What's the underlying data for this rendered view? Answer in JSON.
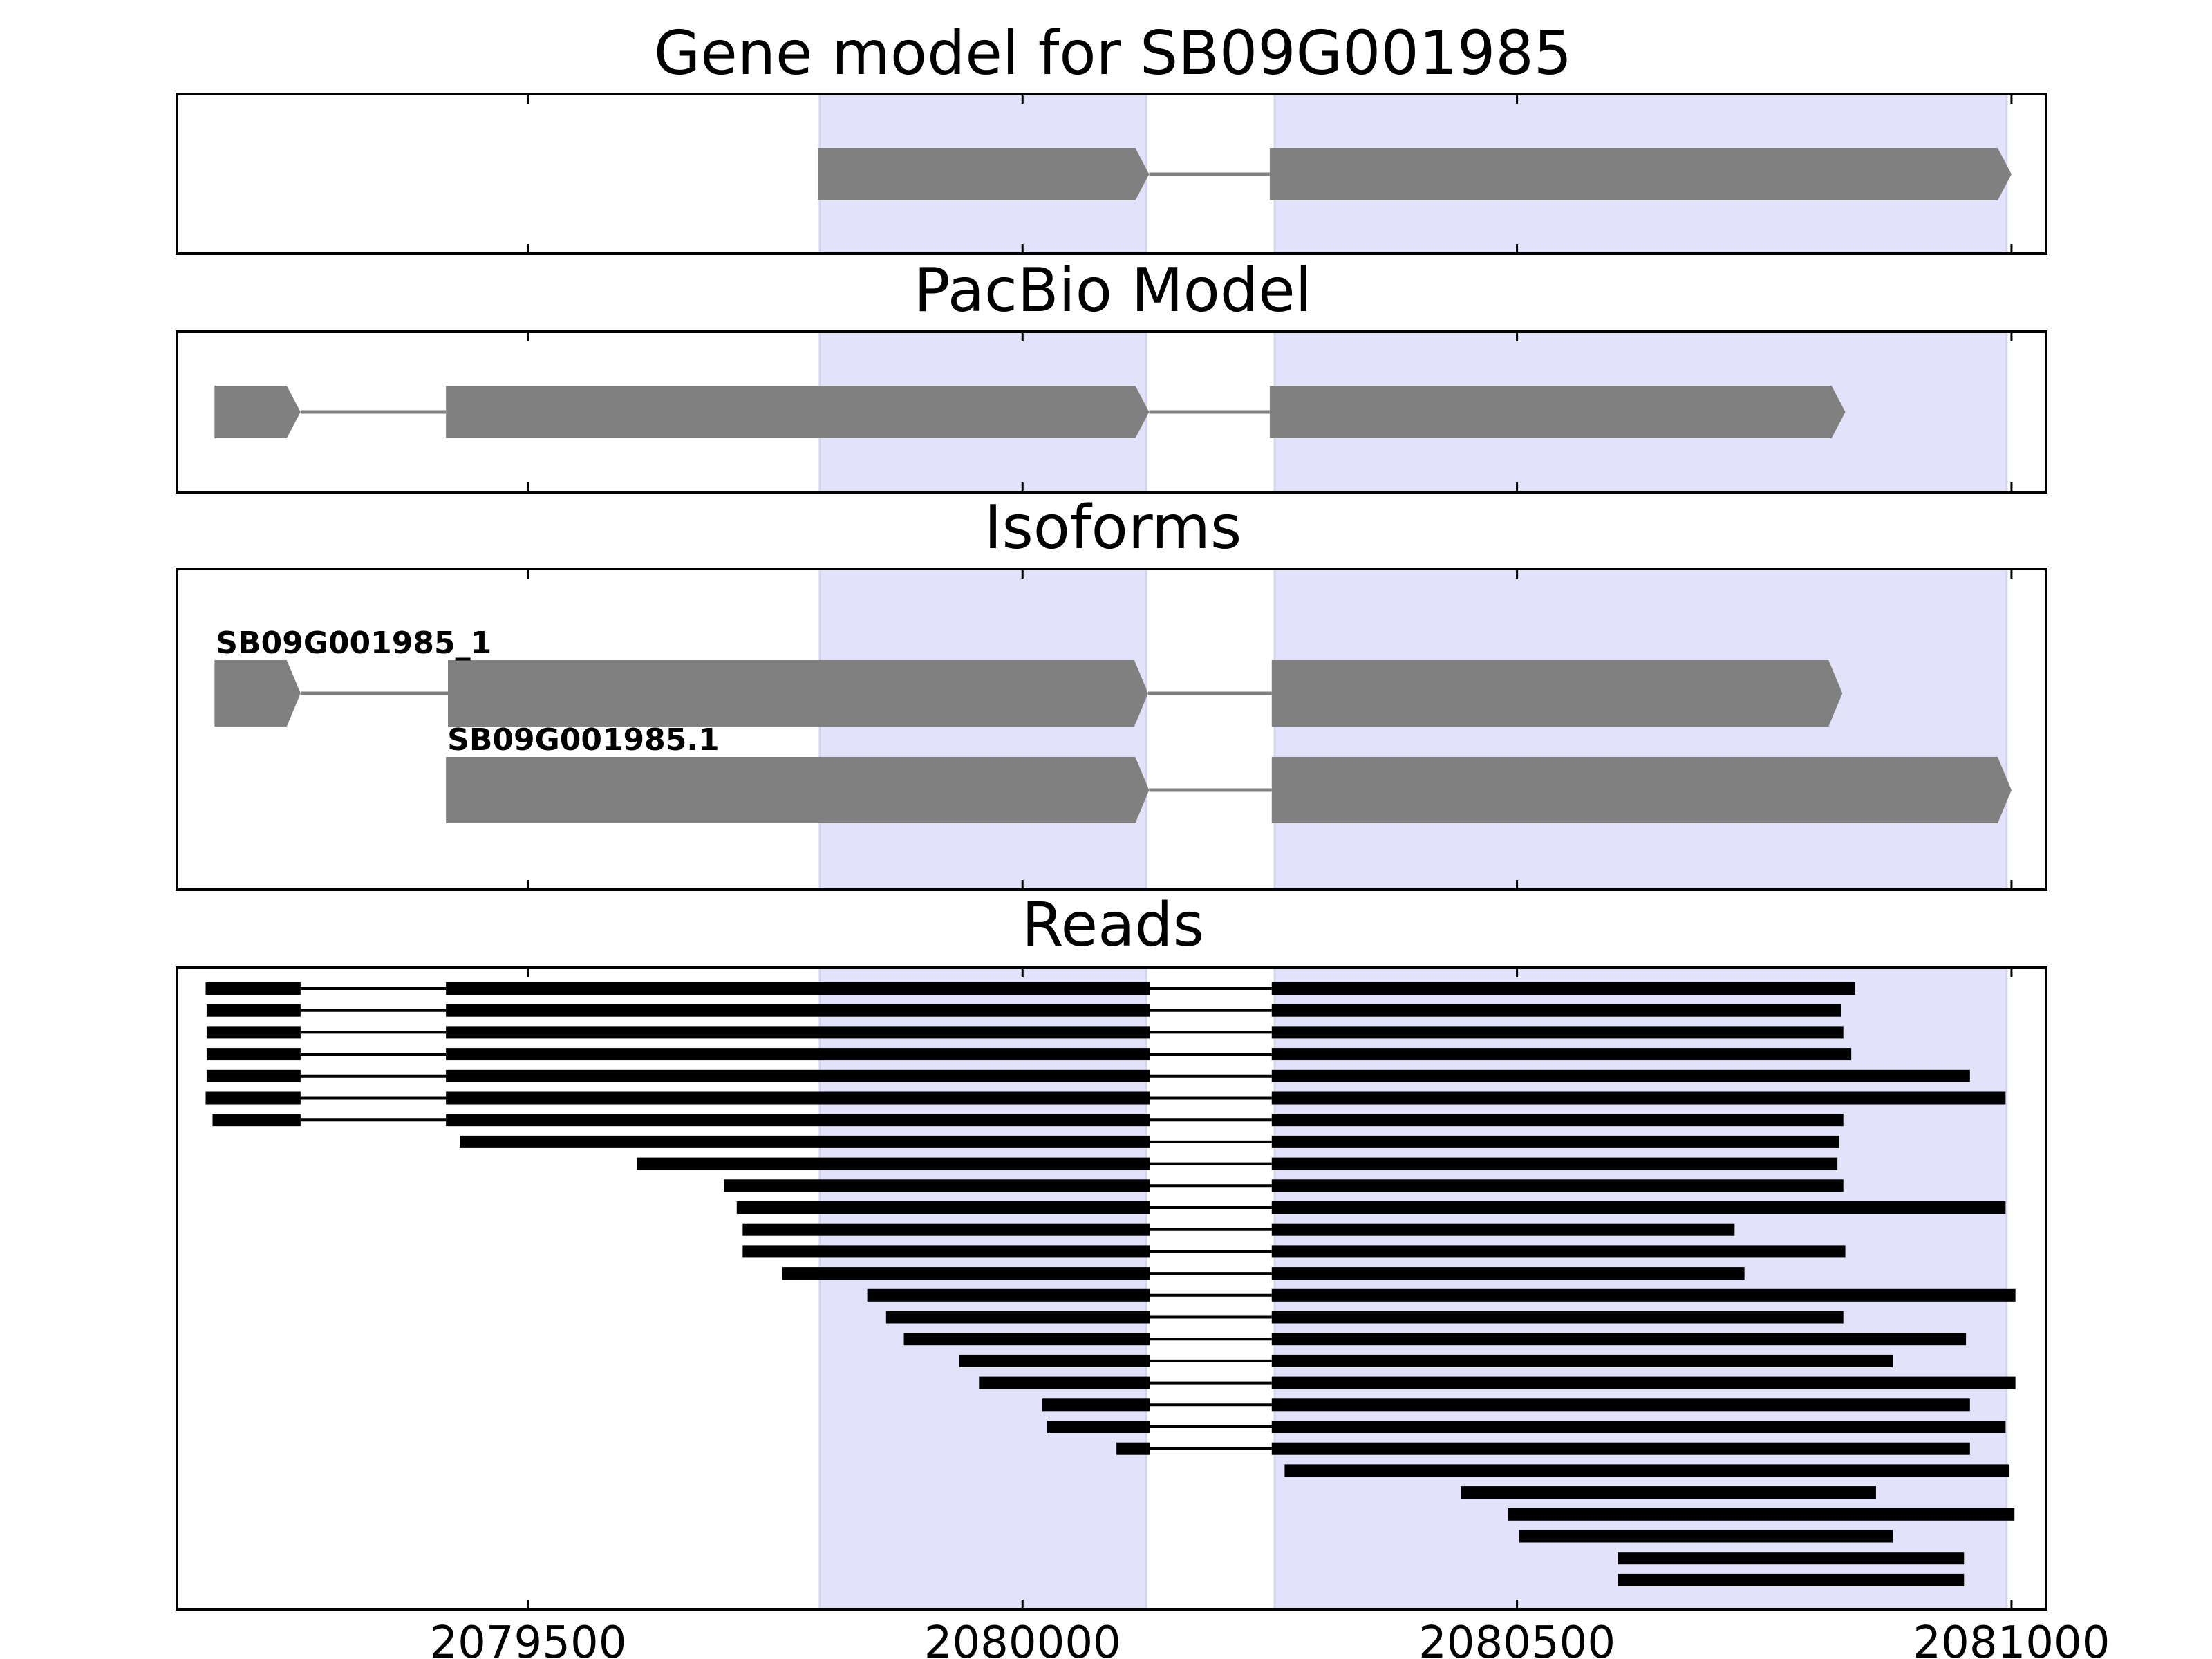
{
  "figure": {
    "xlim": [
      2079145,
      2081035
    ],
    "x_ticks": [
      2079500,
      2080000,
      2080500,
      2081000
    ],
    "x_tick_labels": [
      "2079500",
      "2080000",
      "2080500",
      "2081000"
    ],
    "highlight_regions": [
      [
        2079795,
        2080125
      ],
      [
        2080255,
        2080995
      ]
    ],
    "colors": {
      "highlight": "#e2e2fb",
      "feature": "#808080",
      "read": "#000000",
      "frame": "#000000"
    }
  },
  "panels": [
    {
      "id": "gene-model",
      "title": "Gene model for SB09G001985"
    },
    {
      "id": "pacbio-model",
      "title": "PacBio Model"
    },
    {
      "id": "isoforms",
      "title": "Isoforms"
    },
    {
      "id": "reads",
      "title": "Reads"
    }
  ],
  "gene_model": {
    "exons": [
      [
        2079793,
        2080128
      ],
      [
        2080250,
        2081000
      ]
    ]
  },
  "pacbio_model": {
    "exons": [
      [
        2079183,
        2079270
      ],
      [
        2079417,
        2080128
      ],
      [
        2080250,
        2080832
      ]
    ]
  },
  "isoforms": [
    {
      "label": "SB09G001985_1",
      "exons": [
        [
          2079183,
          2079270
        ],
        [
          2079419,
          2080127
        ],
        [
          2080252,
          2080829
        ]
      ]
    },
    {
      "label": "SB09G001985.1",
      "exons": [
        [
          2079417,
          2080128
        ],
        [
          2080252,
          2081000
        ]
      ]
    }
  ],
  "reads": [
    [
      [
        2079174,
        2079270
      ],
      [
        2079417,
        2080129
      ],
      [
        2080252,
        2080842
      ]
    ],
    [
      [
        2079175,
        2079270
      ],
      [
        2079417,
        2080129
      ],
      [
        2080252,
        2080828
      ]
    ],
    [
      [
        2079175,
        2079270
      ],
      [
        2079417,
        2080129
      ],
      [
        2080252,
        2080830
      ]
    ],
    [
      [
        2079175,
        2079270
      ],
      [
        2079417,
        2080129
      ],
      [
        2080252,
        2080838
      ]
    ],
    [
      [
        2079175,
        2079270
      ],
      [
        2079417,
        2080129
      ],
      [
        2080252,
        2080958
      ]
    ],
    [
      [
        2079174,
        2079270
      ],
      [
        2079417,
        2080129
      ],
      [
        2080252,
        2080994
      ]
    ],
    [
      [
        2079181,
        2079270
      ],
      [
        2079417,
        2080129
      ],
      [
        2080252,
        2080830
      ]
    ],
    [
      [
        2079431,
        2080129
      ],
      [
        2080252,
        2080826
      ]
    ],
    [
      [
        2079610,
        2080129
      ],
      [
        2080252,
        2080824
      ]
    ],
    [
      [
        2079698,
        2080129
      ],
      [
        2080252,
        2080830
      ]
    ],
    [
      [
        2079711,
        2080129
      ],
      [
        2080252,
        2080994
      ]
    ],
    [
      [
        2079717,
        2080129
      ],
      [
        2080252,
        2080720
      ]
    ],
    [
      [
        2079717,
        2080129
      ],
      [
        2080252,
        2080832
      ]
    ],
    [
      [
        2079757,
        2080129
      ],
      [
        2080252,
        2080730
      ]
    ],
    [
      [
        2079843,
        2080129
      ],
      [
        2080252,
        2081004
      ]
    ],
    [
      [
        2079862,
        2080129
      ],
      [
        2080252,
        2080830
      ]
    ],
    [
      [
        2079880,
        2080129
      ],
      [
        2080252,
        2080954
      ]
    ],
    [
      [
        2079936,
        2080129
      ],
      [
        2080252,
        2080880
      ]
    ],
    [
      [
        2079956,
        2080129
      ],
      [
        2080252,
        2081004
      ]
    ],
    [
      [
        2080020,
        2080129
      ],
      [
        2080252,
        2080958
      ]
    ],
    [
      [
        2080025,
        2080129
      ],
      [
        2080252,
        2080994
      ]
    ],
    [
      [
        2080095,
        2080129
      ],
      [
        2080252,
        2080958
      ]
    ],
    [
      [
        2080265,
        2080998
      ]
    ],
    [
      [
        2080443,
        2080863
      ]
    ],
    [
      [
        2080491,
        2081003
      ]
    ],
    [
      [
        2080502,
        2080880
      ]
    ],
    [
      [
        2080602,
        2080952
      ]
    ],
    [
      [
        2080602,
        2080952
      ]
    ]
  ]
}
